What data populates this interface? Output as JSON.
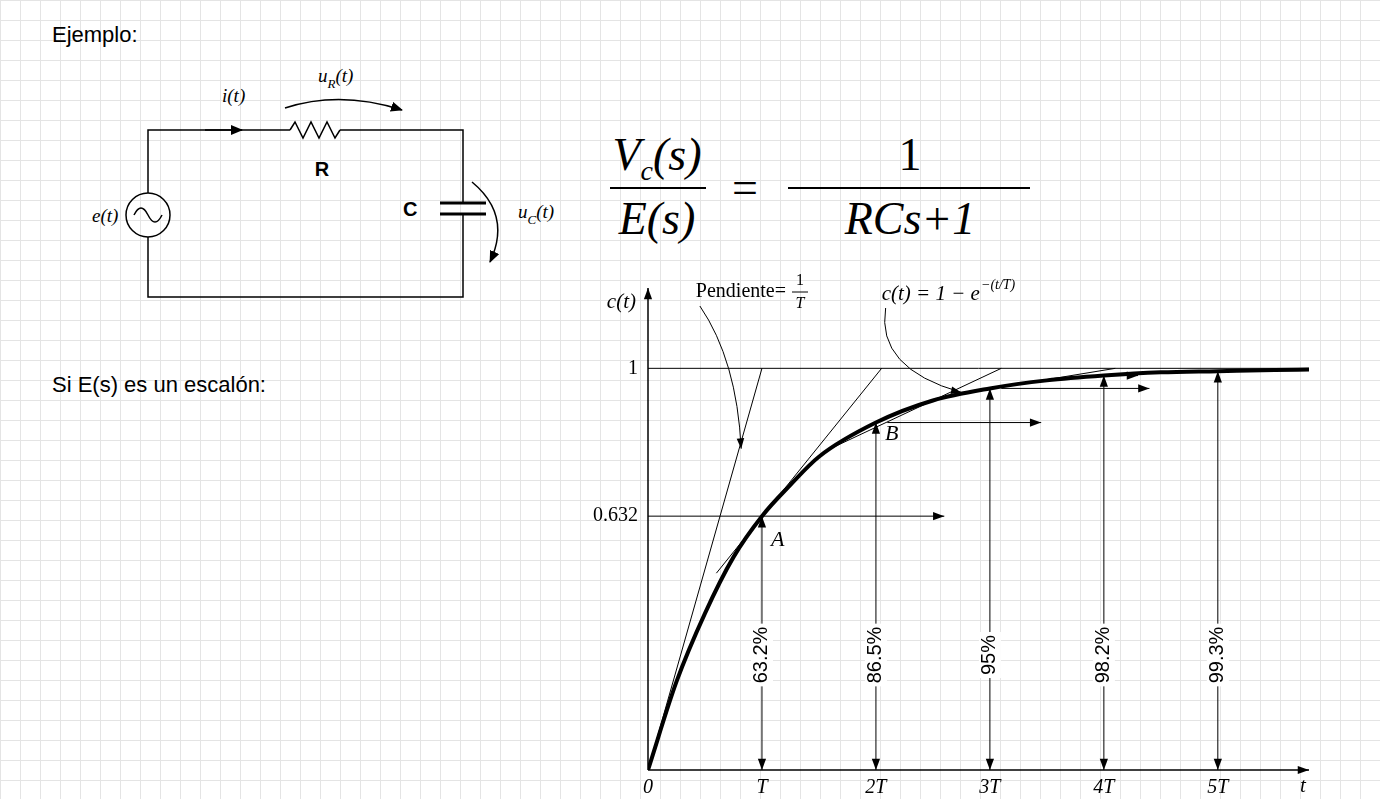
{
  "chart_data": {
    "type": "line",
    "x": [
      0,
      0.25,
      0.5,
      0.75,
      1,
      1.25,
      1.5,
      2,
      2.5,
      3,
      3.5,
      4,
      4.5,
      5,
      5.5,
      5.8
    ],
    "values": [
      0,
      0.22,
      0.39,
      0.53,
      0.632,
      0.71,
      0.78,
      0.865,
      0.92,
      0.95,
      0.97,
      0.982,
      0.99,
      0.993,
      0.996,
      0.997
    ],
    "color": "#000000",
    "xlim": [
      0,
      5.8
    ],
    "xticks": [
      0,
      {
        "value": 1,
        "label": "T"
      },
      {
        "value": 2,
        "label": "2T"
      },
      {
        "value": 3,
        "label": "3T"
      },
      {
        "value": 4,
        "label": "4T"
      },
      {
        "value": 5,
        "label": "5T"
      }
    ],
    "ylim": [
      0,
      1.2
    ],
    "yticks": [
      0.632,
      1
    ],
    "x_label": "t",
    "y_label": "c(t)",
    "grid": false,
    "tangents": [
      {
        "x": [
          0,
          1
        ],
        "y": [
          0,
          1
        ]
      },
      {
        "x": [
          0.6,
          2.05
        ],
        "y": [
          0.49,
          1
        ]
      },
      {
        "x": [
          1.6,
          3.1
        ],
        "y": [
          0.8,
          1
        ]
      },
      {
        "x": [
          2.6,
          4.1
        ],
        "y": [
          0.93,
          1
        ]
      }
    ],
    "hlines": [
      1
    ],
    "levels": [
      {
        "y": 0.632,
        "x": [
          0,
          2.6
        ]
      },
      {
        "y": 0.865,
        "x": [
          2.1,
          3.45
        ]
      },
      {
        "y": 0.95,
        "x": [
          3.1,
          4.4
        ]
      },
      {
        "y": 0.982,
        "x": [
          3.9,
          4.3
        ]
      }
    ],
    "markers": [
      {
        "x": 1,
        "value": 0.632,
        "label": "63.2%"
      },
      {
        "x": 2,
        "value": 0.865,
        "label": "86.5%"
      },
      {
        "x": 3,
        "value": 0.95,
        "label": "95%"
      },
      {
        "x": 4,
        "value": 0.982,
        "label": "98.2%"
      },
      {
        "x": 5,
        "value": 0.993,
        "label": "99.3%"
      }
    ],
    "annotations": {
      "slope": {
        "text": "Pendiente=",
        "numerator": "1",
        "denominator": "T"
      },
      "curve": {
        "text": "c(t) = 1 − e",
        "exponent": "−(t/T)"
      },
      "points": [
        "A",
        "B"
      ]
    }
  },
  "slide": {
    "heading": "Ejemplo:",
    "step_text": "Si E(s) es un escalón:",
    "circuit": {
      "source": "e(t)",
      "current": "i(t)",
      "resistor": "R",
      "capacitor": "C",
      "resistor_voltage": {
        "symbol": "u",
        "subscript": "R",
        "argument": "(t)"
      },
      "capacitor_voltage": {
        "symbol": "u",
        "subscript": "C",
        "argument": "(t)"
      }
    },
    "transfer_function": {
      "lhs_numerator": {
        "symbol": "V",
        "subscript": "c",
        "argument": "(s)"
      },
      "lhs_denominator": "E(s)",
      "relation": "=",
      "rhs_numerator": "1",
      "rhs_denominator": "RCs+1"
    }
  }
}
